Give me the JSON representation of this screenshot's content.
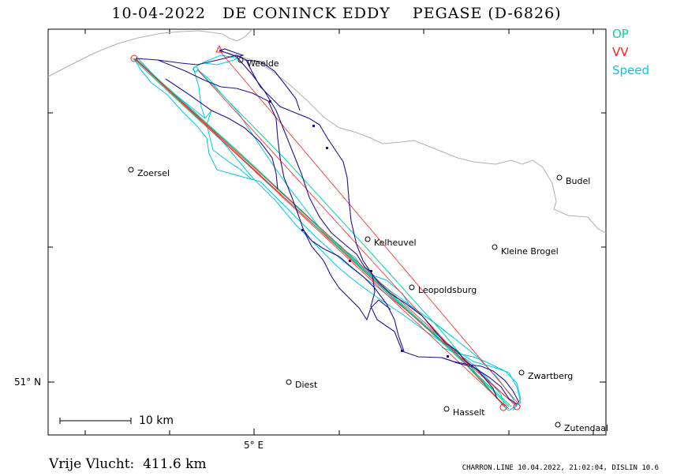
{
  "header": {
    "title": "10-04-2022   DE CONINCK EDDY    PEGASE (D-6826)"
  },
  "legend": {
    "op": "OP",
    "vv": "VV",
    "speed": "Speed",
    "colors": {
      "op": "#00d9a0",
      "vv": "#ff2020",
      "speed": "#00c8e8",
      "track": "#2a0f8a",
      "border": "#b0b0b0"
    }
  },
  "axes": {
    "lat_label": "51° N",
    "lon_label": "5° E"
  },
  "places": [
    {
      "name": "Weelde"
    },
    {
      "name": "Zoersel"
    },
    {
      "name": "Budel"
    },
    {
      "name": "Kelheuvel"
    },
    {
      "name": "Kleine Brogel"
    },
    {
      "name": "Leopoldsburg"
    },
    {
      "name": "Zwartberg"
    },
    {
      "name": "Diest"
    },
    {
      "name": "Hasselt"
    },
    {
      "name": "Zutendaal"
    }
  ],
  "scale": {
    "label": "10  km"
  },
  "footer": {
    "distance": "Vrije Vlucht:  411.6 km",
    "credit": "CHARRON.LINE 10.04.2022, 21:02:04, DISLIN 10.6"
  }
}
